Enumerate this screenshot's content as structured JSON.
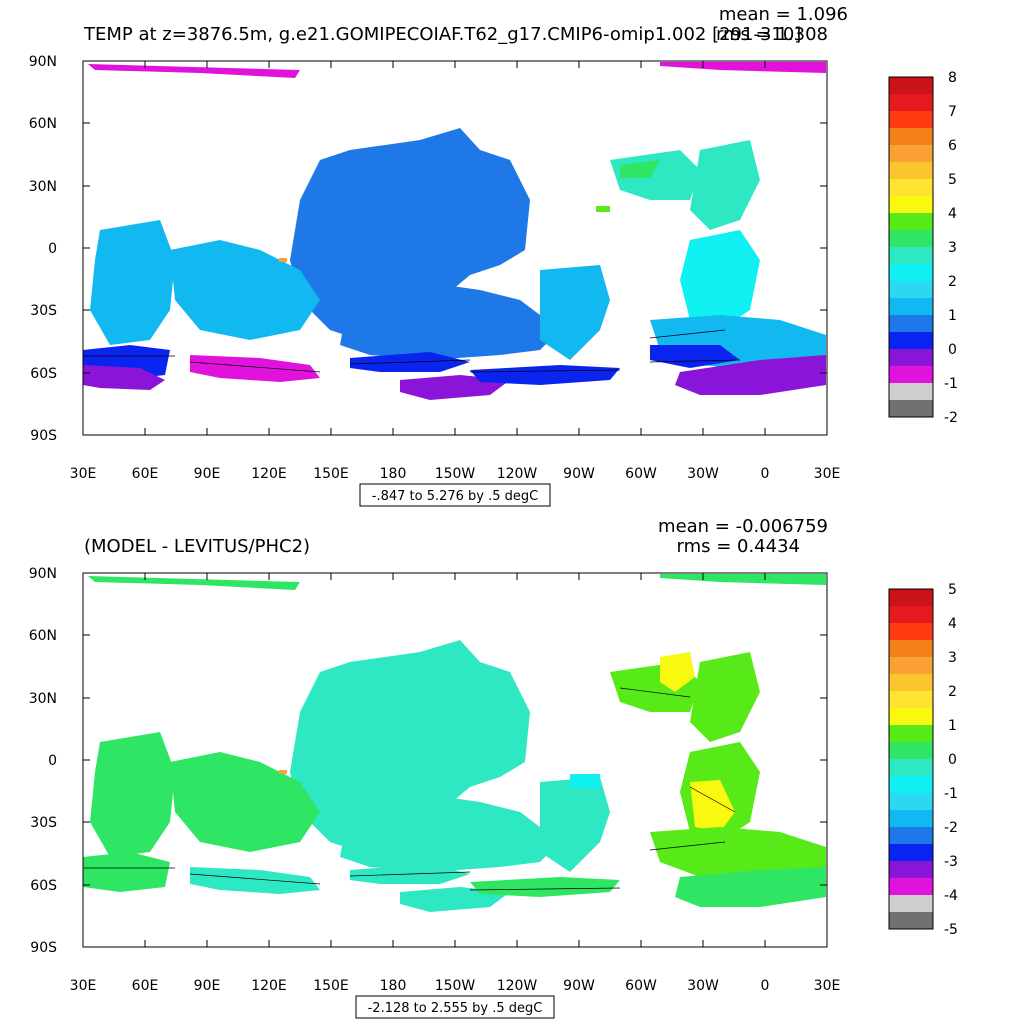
{
  "chart_data": [
    {
      "type": "heatmap",
      "title": "TEMP at z=3876.5m, g.e21.GOMIPECOIAF.T62_g17.CMIP6-omip1.002 [291-310]",
      "stats": {
        "mean_label": "mean = 1.096",
        "rms_label": "rms = 1.308"
      },
      "contour_info": "-.847 to 5.276 by .5 degC",
      "xaxis_ticks": [
        "30E",
        "60E",
        "90E",
        "120E",
        "150E",
        "180",
        "150W",
        "120W",
        "90W",
        "60W",
        "30W",
        "0",
        "30E"
      ],
      "yaxis_ticks": [
        "90N",
        "60N",
        "30N",
        "0",
        "30S",
        "60S",
        "90S"
      ],
      "colorbar_labels": [
        "8",
        "7",
        "6",
        "5",
        "4",
        "3",
        "2",
        "1",
        "0",
        "-1",
        "-2"
      ],
      "colorbar_colors": [
        "#c8141a",
        "#e41a1c",
        "#ff3a10",
        "#f4801a",
        "#f9a134",
        "#fbc52e",
        "#ffe232",
        "#f8f810",
        "#58ea18",
        "#2ee664",
        "#2ee8c4",
        "#10f0f0",
        "#2cd8f0",
        "#12b8f0",
        "#1e78e8",
        "#0a24f0",
        "#8a14d8",
        "#e012dc",
        "#cfcfcf",
        "#707070"
      ],
      "units": "degC"
    },
    {
      "type": "heatmap",
      "title": "(MODEL - LEVITUS/PHC2)",
      "stats": {
        "mean_label": "mean = -0.006759",
        "rms_label": "rms = 0.4434"
      },
      "contour_info": "-2.128 to 2.555 by .5 degC",
      "xaxis_ticks": [
        "30E",
        "60E",
        "90E",
        "120E",
        "150E",
        "180",
        "150W",
        "120W",
        "90W",
        "60W",
        "30W",
        "0",
        "30E"
      ],
      "yaxis_ticks": [
        "90N",
        "60N",
        "30N",
        "0",
        "30S",
        "60S",
        "90S"
      ],
      "colorbar_labels": [
        "5",
        "4",
        "3",
        "2",
        "1",
        "0",
        "-1",
        "-2",
        "-3",
        "-4",
        "-5"
      ],
      "colorbar_colors": [
        "#c8141a",
        "#e41a1c",
        "#ff3a10",
        "#f4801a",
        "#f9a134",
        "#fbc52e",
        "#ffe232",
        "#f8f810",
        "#58ea18",
        "#2ee664",
        "#2ee8c4",
        "#10f0f0",
        "#2cd8f0",
        "#12b8f0",
        "#1e78e8",
        "#0a24f0",
        "#8a14d8",
        "#e012dc",
        "#cfcfcf",
        "#707070"
      ],
      "units": "degC"
    }
  ]
}
